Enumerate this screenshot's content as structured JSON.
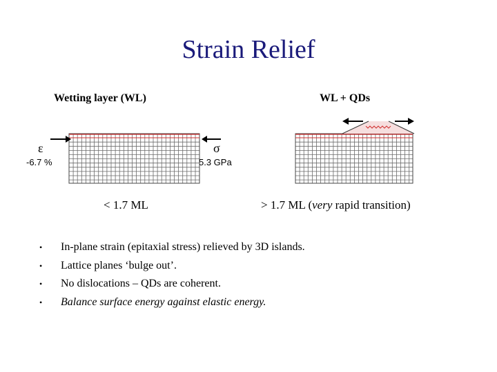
{
  "title": "Strain Relief",
  "diagram": {
    "left_label": "Wetting layer (WL)",
    "right_label": "WL + QDs",
    "strain_symbol": "ε",
    "strain_value": "-6.7 %",
    "stress_symbol": "σ",
    "stress_value": "5.3 GPa",
    "below_critical": "< 1.7 ML",
    "above_critical_prefix": "> 1.7 ML (",
    "above_critical_em": "very",
    "above_critical_suffix": " rapid transition)"
  },
  "bullets": [
    {
      "text": "In-plane strain (epitaxial stress) relieved by 3D islands."
    },
    {
      "text": "Lattice planes ‘bulge out’."
    },
    {
      "text": "No dislocations – QDs are coherent."
    },
    {
      "text": "Balance surface energy against elastic energy."
    }
  ],
  "bullet_glyph": "•",
  "colors": {
    "title": "#1a1a7a",
    "grid": "#6a6a6a",
    "wetting_line": "#d03030",
    "island_fill": "#f6dede"
  }
}
